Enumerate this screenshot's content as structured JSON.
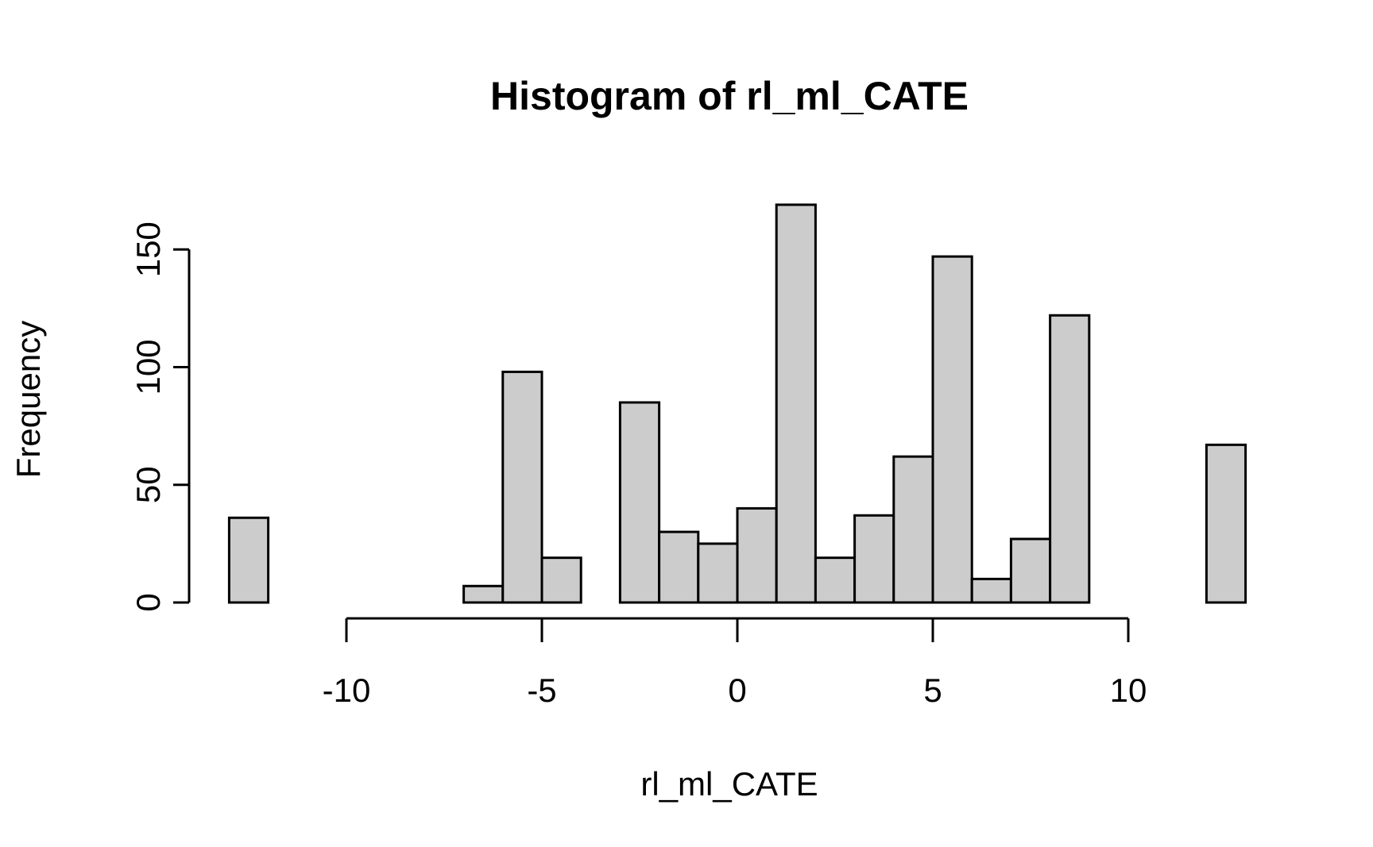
{
  "chart_data": {
    "type": "bar",
    "title": "Histogram of rl_ml_CATE",
    "xlabel": "rl_ml_CATE",
    "ylabel": "Frequency",
    "bin_width": 1,
    "bins": [
      {
        "start": -13,
        "end": -12,
        "count": 36
      },
      {
        "start": -12,
        "end": -11,
        "count": 0
      },
      {
        "start": -11,
        "end": -10,
        "count": 0
      },
      {
        "start": -10,
        "end": -9,
        "count": 0
      },
      {
        "start": -9,
        "end": -8,
        "count": 0
      },
      {
        "start": -8,
        "end": -7,
        "count": 0
      },
      {
        "start": -7,
        "end": -6,
        "count": 7
      },
      {
        "start": -6,
        "end": -5,
        "count": 98
      },
      {
        "start": -5,
        "end": -4,
        "count": 19
      },
      {
        "start": -4,
        "end": -3,
        "count": 0
      },
      {
        "start": -3,
        "end": -2,
        "count": 85
      },
      {
        "start": -2,
        "end": -1,
        "count": 30
      },
      {
        "start": -1,
        "end": 0,
        "count": 25
      },
      {
        "start": 0,
        "end": 1,
        "count": 40
      },
      {
        "start": 1,
        "end": 2,
        "count": 169
      },
      {
        "start": 2,
        "end": 3,
        "count": 19
      },
      {
        "start": 3,
        "end": 4,
        "count": 37
      },
      {
        "start": 4,
        "end": 5,
        "count": 62
      },
      {
        "start": 5,
        "end": 6,
        "count": 147
      },
      {
        "start": 6,
        "end": 7,
        "count": 10
      },
      {
        "start": 7,
        "end": 8,
        "count": 27
      },
      {
        "start": 8,
        "end": 9,
        "count": 122
      },
      {
        "start": 9,
        "end": 10,
        "count": 0
      },
      {
        "start": 10,
        "end": 11,
        "count": 0
      },
      {
        "start": 11,
        "end": 12,
        "count": 0
      },
      {
        "start": 12,
        "end": 13,
        "count": 67
      }
    ],
    "xlim": [
      -13,
      13
    ],
    "ylim": [
      0,
      169
    ],
    "x_ticks": [
      -10,
      -5,
      0,
      5,
      10
    ],
    "x_tick_labels": [
      "-10",
      "-5",
      "0",
      "5",
      "10"
    ],
    "y_ticks": [
      0,
      50,
      100,
      150
    ],
    "y_tick_labels": [
      "0",
      "50",
      "100",
      "150"
    ],
    "grid": false,
    "bar_color": "#cccccc",
    "edge_color": "#000000"
  }
}
